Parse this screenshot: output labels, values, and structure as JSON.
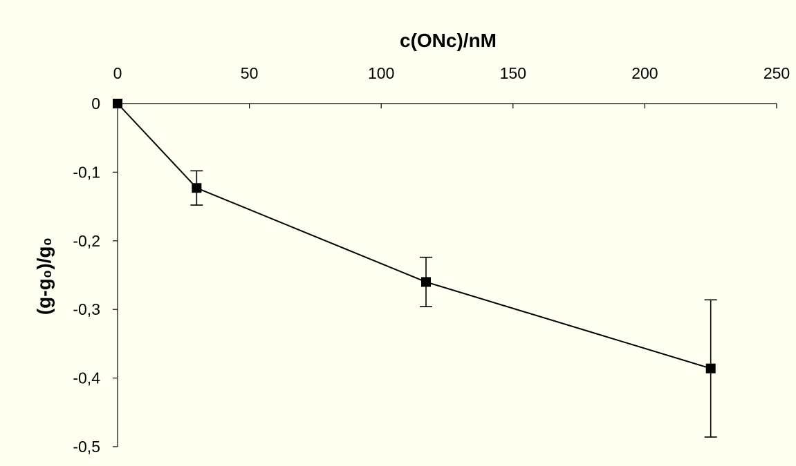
{
  "chart_data": {
    "type": "line",
    "xlabel": "c(ONc)/nM",
    "ylabel": "(g-g₀)/g₀",
    "xlim": [
      0,
      250
    ],
    "ylim": [
      -0.5,
      0
    ],
    "x_axis_position": "top",
    "x_ticks": [
      0,
      50,
      100,
      150,
      200,
      250
    ],
    "x_tick_labels": [
      "0",
      "50",
      "100",
      "150",
      "200",
      "250"
    ],
    "y_ticks": [
      0,
      -0.1,
      -0.2,
      -0.3,
      -0.4,
      -0.5
    ],
    "y_tick_labels": [
      "0",
      "-0,1",
      "-0,2",
      "-0,3",
      "-0,4",
      "-0,5"
    ],
    "grid": false,
    "legend": false,
    "series": [
      {
        "marker": "square",
        "color": "#000000",
        "x": [
          0,
          30,
          117,
          225
        ],
        "y": [
          0,
          -0.123,
          -0.26,
          -0.386
        ],
        "error": [
          0,
          0.025,
          0.036,
          0.1
        ]
      }
    ]
  }
}
